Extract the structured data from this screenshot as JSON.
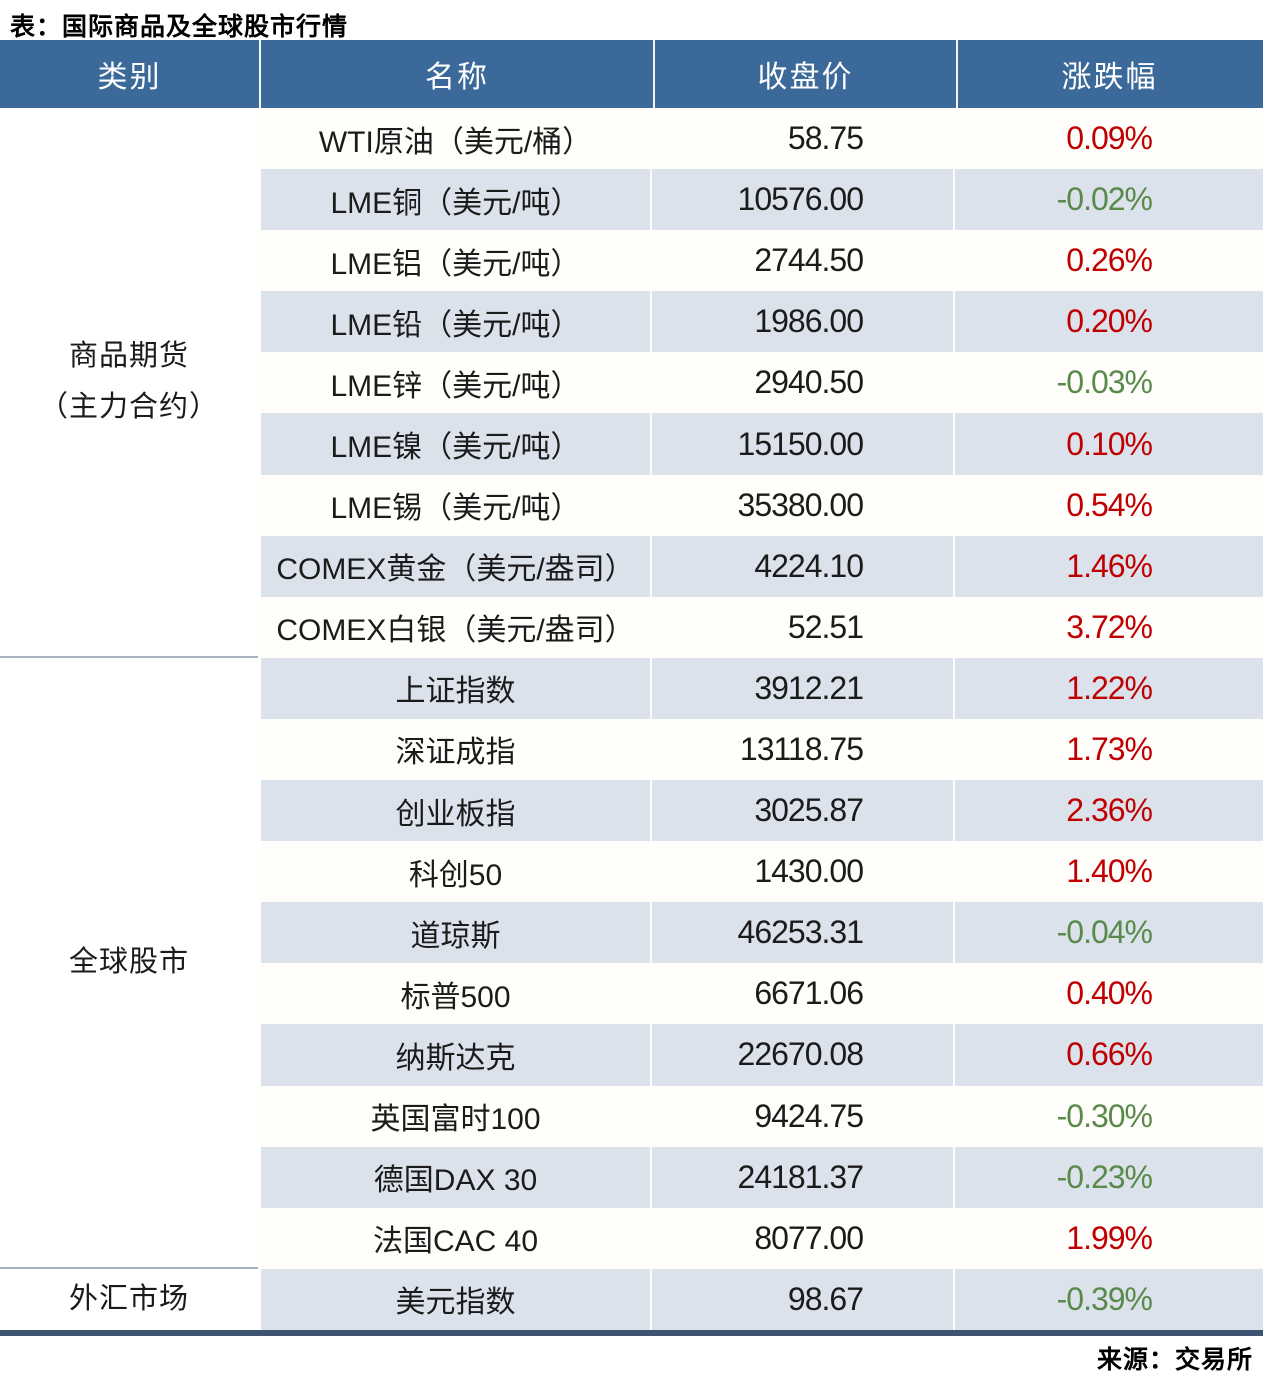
{
  "title": "表：国际商品及全球股市行情",
  "source": "来源：交易所",
  "colors": {
    "header_bg": "#3a699a",
    "stripe": "#dbe2ec",
    "positive_red": "#c00000",
    "negative_green": "#5a8a4a",
    "group_divider": "#a9b3c0",
    "bottom_rule": "#3e5470"
  },
  "chart_data": {
    "type": "table",
    "title": "表：国际商品及全球股市行情",
    "source": "来源：交易所",
    "columns": [
      "类别",
      "名称",
      "收盘价",
      "涨跌幅"
    ],
    "groups": [
      {
        "label": "商品期货\n（主力合约）",
        "row_span": 9
      },
      {
        "label": "全球股市",
        "row_span": 10
      },
      {
        "label": "外汇市场",
        "row_span": 1
      }
    ],
    "rows": [
      {
        "category": "商品期货（主力合约）",
        "name": "WTI原油（美元/桶）",
        "close": "58.75",
        "change": "0.09%"
      },
      {
        "category": "商品期货（主力合约）",
        "name": "LME铜（美元/吨）",
        "close": "10576.00",
        "change": "-0.02%"
      },
      {
        "category": "商品期货（主力合约）",
        "name": "LME铝（美元/吨）",
        "close": "2744.50",
        "change": "0.26%"
      },
      {
        "category": "商品期货（主力合约）",
        "name": "LME铅（美元/吨）",
        "close": "1986.00",
        "change": "0.20%"
      },
      {
        "category": "商品期货（主力合约）",
        "name": "LME锌（美元/吨）",
        "close": "2940.50",
        "change": "-0.03%"
      },
      {
        "category": "商品期货（主力合约）",
        "name": "LME镍（美元/吨）",
        "close": "15150.00",
        "change": "0.10%"
      },
      {
        "category": "商品期货（主力合约）",
        "name": "LME锡（美元/吨）",
        "close": "35380.00",
        "change": "0.54%"
      },
      {
        "category": "商品期货（主力合约）",
        "name": "COMEX黄金（美元/盎司）",
        "close": "4224.10",
        "change": "1.46%"
      },
      {
        "category": "商品期货（主力合约）",
        "name": "COMEX白银（美元/盎司）",
        "close": "52.51",
        "change": "3.72%"
      },
      {
        "category": "全球股市",
        "name": "上证指数",
        "close": "3912.21",
        "change": "1.22%"
      },
      {
        "category": "全球股市",
        "name": "深证成指",
        "close": "13118.75",
        "change": "1.73%"
      },
      {
        "category": "全球股市",
        "name": "创业板指",
        "close": "3025.87",
        "change": "2.36%"
      },
      {
        "category": "全球股市",
        "name": "科创50",
        "close": "1430.00",
        "change": "1.40%"
      },
      {
        "category": "全球股市",
        "name": "道琼斯",
        "close": "46253.31",
        "change": "-0.04%"
      },
      {
        "category": "全球股市",
        "name": "标普500",
        "close": "6671.06",
        "change": "0.40%"
      },
      {
        "category": "全球股市",
        "name": "纳斯达克",
        "close": "22670.08",
        "change": "0.66%"
      },
      {
        "category": "全球股市",
        "name": "英国富时100",
        "close": "9424.75",
        "change": "-0.30%"
      },
      {
        "category": "全球股市",
        "name": "德国DAX 30",
        "close": "24181.37",
        "change": "-0.23%"
      },
      {
        "category": "全球股市",
        "name": "法国CAC 40",
        "close": "8077.00",
        "change": "1.99%"
      },
      {
        "category": "外汇市场",
        "name": "美元指数",
        "close": "98.67",
        "change": "-0.39%"
      }
    ]
  }
}
